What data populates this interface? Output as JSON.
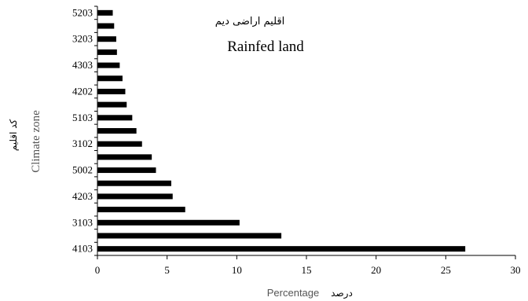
{
  "chart_data": {
    "type": "bar",
    "orientation": "horizontal",
    "title_fa": "اقلیم اراضی دیم",
    "title_en": "Rainfed land",
    "ylabel_en": "Climate zone",
    "ylabel_fa": "کد اقلیم",
    "xlabel_en": "Percentage",
    "xlabel_fa": "درصد",
    "xlim": [
      0,
      30
    ],
    "xticks": [
      0,
      5,
      10,
      15,
      20,
      25,
      30
    ],
    "categories": [
      "4103",
      "",
      "3103",
      "",
      "4203",
      "",
      "5002",
      "",
      "3102",
      "",
      "5103",
      "",
      "4202",
      "",
      "4303",
      "",
      "3203",
      "",
      "5203"
    ],
    "values": [
      26.4,
      13.2,
      10.2,
      6.3,
      5.4,
      5.3,
      4.2,
      3.9,
      3.2,
      2.8,
      2.5,
      2.1,
      2.0,
      1.8,
      1.6,
      1.4,
      1.35,
      1.2,
      1.1
    ],
    "bar_color": "#000000",
    "grid": false,
    "legend": "none"
  }
}
